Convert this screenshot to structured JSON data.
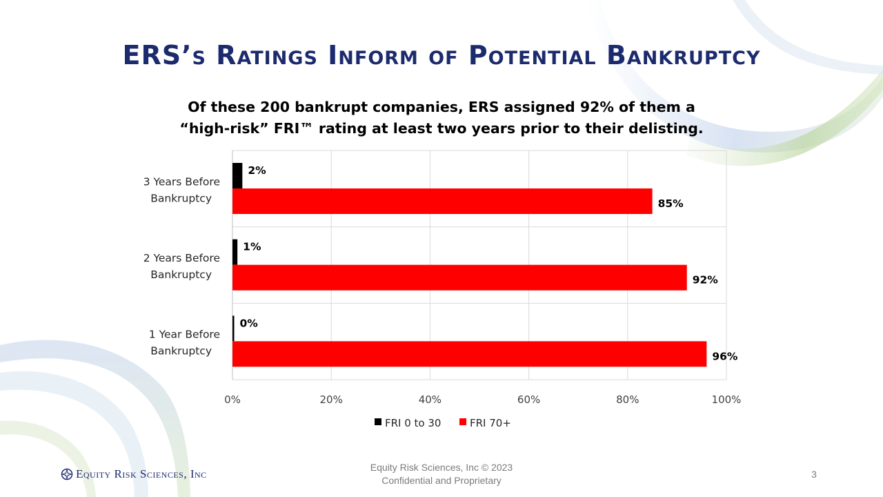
{
  "slide": {
    "title": "ERS’s Ratings Inform of Potential Bankruptcy",
    "subtitle_line1": "Of these 200 bankrupt companies, ERS assigned 92% of them a",
    "subtitle_line2": "“high-risk” FRI™ rating at least two years prior to their delisting.",
    "footer_line1": "Equity Risk Sciences, Inc © 2023",
    "footer_line2": "Confidential and Proprietary",
    "page_number": "3",
    "logo_text": "Equity Risk Sciences, Inc",
    "logo_icon": "compass-rose-icon"
  },
  "chart_data": {
    "type": "bar",
    "orientation": "horizontal",
    "categories": [
      "3 Years Before Bankruptcy",
      "2 Years Before Bankruptcy",
      "1 Year Before Bankruptcy"
    ],
    "series": [
      {
        "name": "FRI 0 to 30",
        "color": "#000000",
        "values": [
          2,
          1,
          0
        ],
        "labels": [
          "2%",
          "1%",
          "0%"
        ]
      },
      {
        "name": "FRI 70+",
        "color": "#ff0000",
        "values": [
          85,
          92,
          96
        ],
        "labels": [
          "85%",
          "92%",
          "96%"
        ]
      }
    ],
    "xlim": [
      0,
      100
    ],
    "xticks": [
      0,
      20,
      40,
      60,
      80,
      100
    ],
    "xtick_labels": [
      "0%",
      "20%",
      "40%",
      "60%",
      "80%",
      "100%"
    ],
    "grid": true,
    "legend_position": "bottom"
  },
  "colors": {
    "title": "#1c2a6e",
    "accent_blue": "#6f8fc4",
    "accent_green": "#9cc27a"
  }
}
